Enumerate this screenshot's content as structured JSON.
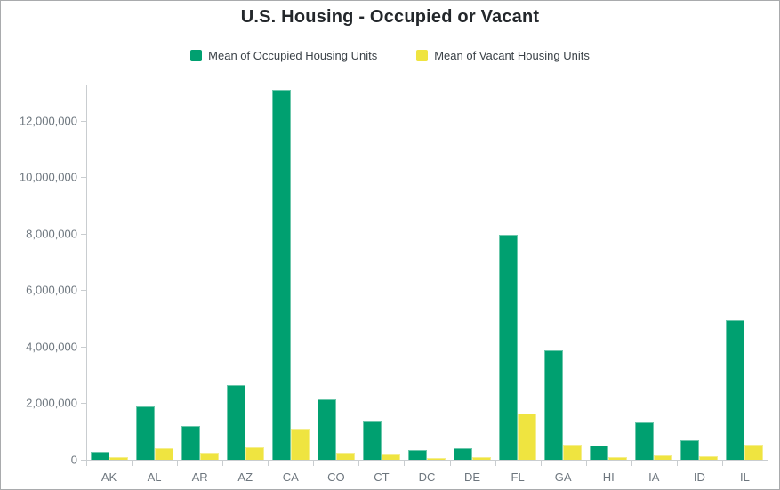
{
  "window": {
    "background": "#ffffff",
    "border_color": "#a9abad"
  },
  "header": {
    "title": "U.S. Housing - Occupied or Vacant"
  },
  "legend": {
    "position": "top-center",
    "items": [
      {
        "label": "Mean of Occupied Housing Units",
        "color": "#00A070"
      },
      {
        "label": "Mean of Vacant Housing Units",
        "color": "#EFE440"
      }
    ]
  },
  "chart_data": {
    "type": "bar",
    "title": "U.S. Housing - Occupied or Vacant",
    "categories": [
      "AK",
      "AL",
      "AR",
      "AZ",
      "CA",
      "CO",
      "CT",
      "DC",
      "DE",
      "FL",
      "GA",
      "HI",
      "IA",
      "ID",
      "IL"
    ],
    "series": [
      {
        "name": "Mean of Occupied Housing Units",
        "color": "#00A070",
        "values": [
          290000,
          1900000,
          1190000,
          2650000,
          13100000,
          2150000,
          1400000,
          350000,
          400000,
          7950000,
          3870000,
          490000,
          1320000,
          680000,
          4930000
        ]
      },
      {
        "name": "Mean of Vacant Housing Units",
        "color": "#EFE440",
        "values": [
          110000,
          420000,
          250000,
          440000,
          1100000,
          250000,
          200000,
          50000,
          110000,
          1650000,
          520000,
          100000,
          160000,
          140000,
          520000
        ]
      }
    ],
    "xlabel": "",
    "ylabel": "",
    "ylim": [
      0,
      13170000
    ],
    "yticks": [
      0,
      2000000,
      4000000,
      6000000,
      8000000,
      10000000,
      12000000
    ],
    "ytick_format": "thousands-separated",
    "grid": false,
    "legend_position": "top-center"
  }
}
